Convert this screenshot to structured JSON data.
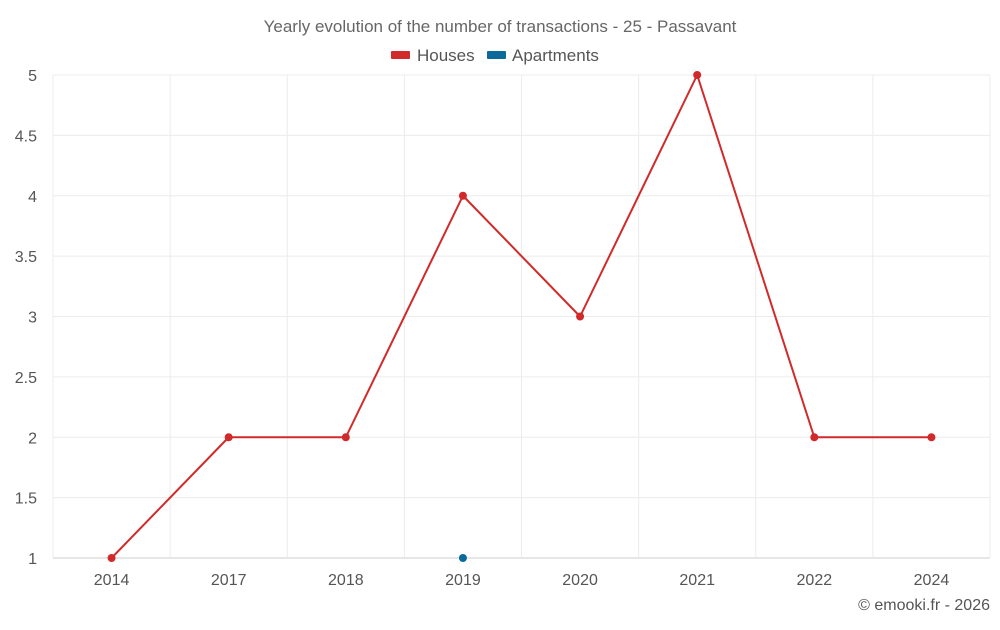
{
  "chart_data": {
    "type": "line",
    "title": "Yearly evolution of the number of transactions - 25 - Passavant",
    "categories": [
      "2014",
      "2017",
      "2018",
      "2019",
      "2020",
      "2021",
      "2022",
      "2024"
    ],
    "series": [
      {
        "name": "Houses",
        "color": "#d12a2a",
        "values": [
          1,
          2,
          2,
          4,
          3,
          5,
          2,
          2
        ]
      },
      {
        "name": "Apartments",
        "color": "#0a6b9a",
        "values": [
          null,
          null,
          null,
          1,
          null,
          null,
          null,
          null
        ]
      }
    ],
    "yticks": [
      "1",
      "1.5",
      "2",
      "2.5",
      "3",
      "3.5",
      "4",
      "4.5",
      "5"
    ],
    "ylim": [
      1,
      5
    ],
    "grid": true,
    "legend_position": "top-center"
  },
  "credit": "© emooki.fr - 2026"
}
